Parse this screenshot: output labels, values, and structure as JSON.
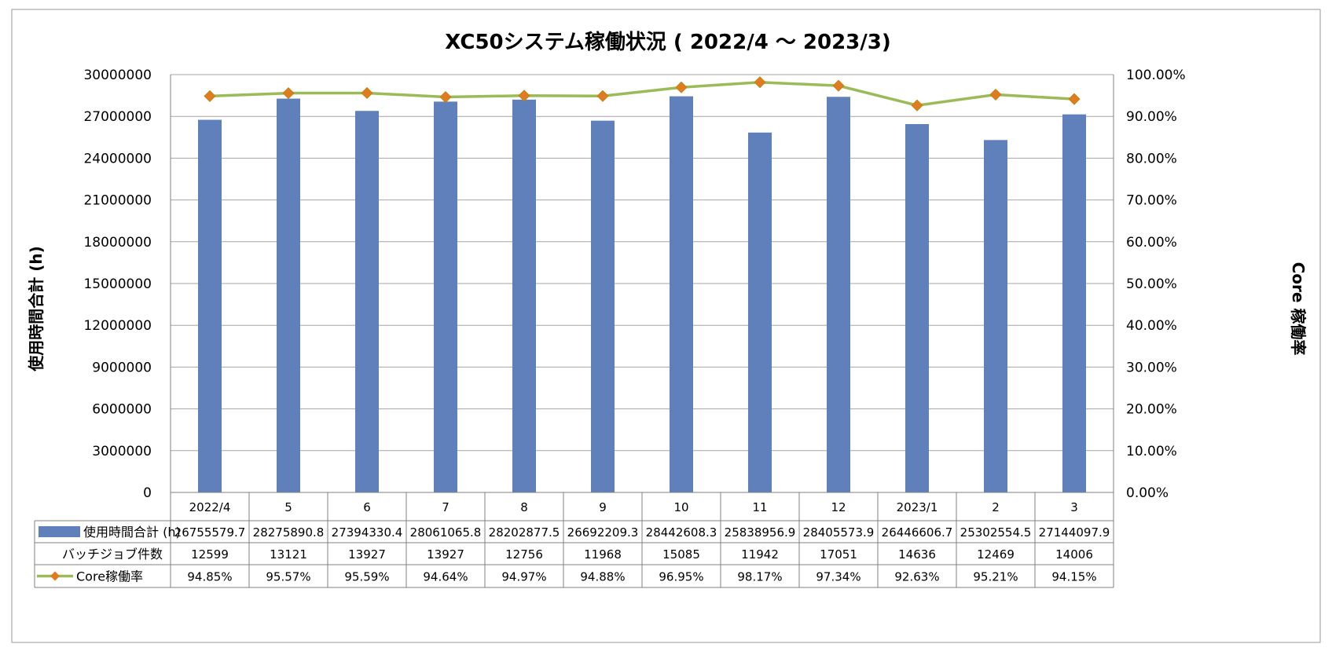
{
  "chart_data": {
    "type": "bar",
    "title": "XC50システム稼働状況 ( 2022/4 〜 2023/3)",
    "ylabel": "使用時間合計 (h)",
    "y2label": "Core 稼働率",
    "ylim": [
      0,
      30000000
    ],
    "y2lim": [
      0,
      1.0
    ],
    "yticks": [
      "0",
      "3000000",
      "6000000",
      "9000000",
      "12000000",
      "15000000",
      "18000000",
      "21000000",
      "24000000",
      "27000000",
      "30000000"
    ],
    "y2ticks": [
      "0.00%",
      "10.00%",
      "20.00%",
      "30.00%",
      "40.00%",
      "50.00%",
      "60.00%",
      "70.00%",
      "80.00%",
      "90.00%",
      "100.00%"
    ],
    "grid": true,
    "categories": [
      "2022/4",
      "5",
      "6",
      "7",
      "8",
      "9",
      "10",
      "11",
      "12",
      "2023/1",
      "2",
      "3"
    ],
    "series": [
      {
        "name": "使用時間合計 (h)",
        "type": "bar",
        "axis": "left",
        "color": "#6080BC",
        "values": [
          26755579.7,
          28275890.8,
          27394330.4,
          28061065.8,
          28202877.5,
          26692209.3,
          28442608.3,
          25838956.9,
          28405573.9,
          26446606.7,
          25302554.5,
          27144097.9
        ],
        "labels": [
          "26755579.7",
          "28275890.8",
          "27394330.4",
          "28061065.8",
          "28202877.5",
          "26692209.3",
          "28442608.3",
          "25838956.9",
          "28405573.9",
          "26446606.7",
          "25302554.5",
          "27144097.9"
        ]
      },
      {
        "name": "バッチジョブ件数",
        "type": "table",
        "values": [
          12599,
          13121,
          13927,
          13927,
          12756,
          11968,
          15085,
          11942,
          17051,
          14636,
          12469,
          14006
        ],
        "labels": [
          "12599",
          "13121",
          "13927",
          "13927",
          "12756",
          "11968",
          "15085",
          "11942",
          "17051",
          "14636",
          "12469",
          "14006"
        ]
      },
      {
        "name": "Core稼働率",
        "type": "line",
        "axis": "right",
        "color": "#9BBB59",
        "marker_color": "#E07B22",
        "values": [
          0.9485,
          0.9557,
          0.9559,
          0.9464,
          0.9497,
          0.9488,
          0.9695,
          0.9817,
          0.9734,
          0.9263,
          0.9521,
          0.9415
        ],
        "labels": [
          "94.85%",
          "95.57%",
          "95.59%",
          "94.64%",
          "94.97%",
          "94.88%",
          "96.95%",
          "98.17%",
          "97.34%",
          "92.63%",
          "95.21%",
          "94.15%"
        ]
      }
    ]
  }
}
